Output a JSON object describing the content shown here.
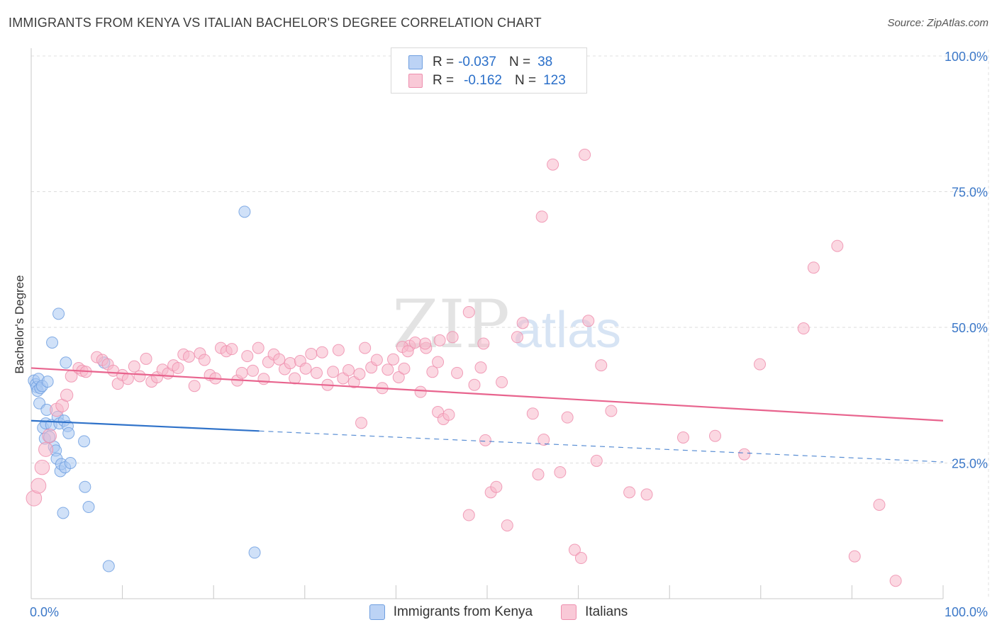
{
  "title": "IMMIGRANTS FROM KENYA VS ITALIAN BACHELOR'S DEGREE CORRELATION CHART",
  "source": "Source: ZipAtlas.com",
  "watermark": {
    "zip": "ZIP",
    "atlas": "atlas"
  },
  "legend": {
    "rows": [
      {
        "r_label": "R =",
        "r_value": "-0.037",
        "n_label": "N =",
        "n_value": "38"
      },
      {
        "r_label": "R =",
        "r_value": "-0.162",
        "n_label": "N =",
        "n_value": "123"
      }
    ]
  },
  "chart_data": {
    "type": "scatter",
    "title": "IMMIGRANTS FROM KENYA VS ITALIAN BACHELOR'S DEGREE CORRELATION CHART",
    "xlabel": "",
    "ylabel": "Bachelor's Degree",
    "xlim": [
      0,
      100
    ],
    "ylim": [
      0,
      100
    ],
    "x_tick_labels": [
      "0.0%",
      "100.0%"
    ],
    "y_ticks": [
      25,
      50,
      75,
      100
    ],
    "y_tick_labels": [
      "25.0%",
      "50.0%",
      "75.0%",
      "100.0%"
    ],
    "grid": true,
    "legend_position": "bottom",
    "series": [
      {
        "name": "Immigrants from Kenya",
        "color": "#a9c8f2",
        "edge": "#6f9fe0",
        "line_color": "#2f72c9",
        "trend": {
          "x0": 0,
          "y0": 32.8,
          "x_solid_end": 25,
          "x1": 100,
          "y1": 25.2
        },
        "points": [
          {
            "x": 0.3,
            "y": 40.2
          },
          {
            "x": 0.5,
            "y": 39.5
          },
          {
            "x": 0.6,
            "y": 39.0
          },
          {
            "x": 0.7,
            "y": 38.3
          },
          {
            "x": 0.8,
            "y": 40.5
          },
          {
            "x": 0.9,
            "y": 36.0
          },
          {
            "x": 1.0,
            "y": 38.8
          },
          {
            "x": 1.2,
            "y": 39.2
          },
          {
            "x": 1.3,
            "y": 31.5
          },
          {
            "x": 1.5,
            "y": 29.5
          },
          {
            "x": 1.6,
            "y": 32.3
          },
          {
            "x": 1.7,
            "y": 34.8
          },
          {
            "x": 1.8,
            "y": 40.0
          },
          {
            "x": 2.0,
            "y": 29.8
          },
          {
            "x": 2.2,
            "y": 32.0
          },
          {
            "x": 2.3,
            "y": 47.2
          },
          {
            "x": 2.5,
            "y": 28.0
          },
          {
            "x": 2.7,
            "y": 27.3
          },
          {
            "x": 2.8,
            "y": 25.8
          },
          {
            "x": 2.9,
            "y": 33.5
          },
          {
            "x": 3.0,
            "y": 52.5
          },
          {
            "x": 3.1,
            "y": 32.3
          },
          {
            "x": 3.2,
            "y": 23.5
          },
          {
            "x": 3.3,
            "y": 24.8
          },
          {
            "x": 3.5,
            "y": 15.8
          },
          {
            "x": 3.6,
            "y": 32.8
          },
          {
            "x": 3.7,
            "y": 24.2
          },
          {
            "x": 3.8,
            "y": 43.5
          },
          {
            "x": 4.0,
            "y": 31.8
          },
          {
            "x": 4.1,
            "y": 30.5
          },
          {
            "x": 4.3,
            "y": 25.0
          },
          {
            "x": 5.8,
            "y": 29.0
          },
          {
            "x": 5.9,
            "y": 20.6
          },
          {
            "x": 6.3,
            "y": 16.9
          },
          {
            "x": 8.5,
            "y": 6.0
          },
          {
            "x": 8.0,
            "y": 43.5
          },
          {
            "x": 23.4,
            "y": 71.3
          },
          {
            "x": 24.5,
            "y": 8.5
          }
        ]
      },
      {
        "name": "Italians",
        "color": "#f7b8cb",
        "edge": "#ee8fae",
        "line_color": "#e8648e",
        "trend": {
          "x0": 0,
          "y0": 42.5,
          "x_solid_end": 100,
          "x1": 100,
          "y1": 32.8
        },
        "points": [
          {
            "x": 0.3,
            "y": 18.5
          },
          {
            "x": 0.8,
            "y": 20.8
          },
          {
            "x": 1.2,
            "y": 24.2
          },
          {
            "x": 1.6,
            "y": 27.5
          },
          {
            "x": 2.0,
            "y": 30.0
          },
          {
            "x": 2.8,
            "y": 34.8
          },
          {
            "x": 3.4,
            "y": 35.6
          },
          {
            "x": 3.9,
            "y": 37.5
          },
          {
            "x": 4.4,
            "y": 41.0
          },
          {
            "x": 5.2,
            "y": 42.5
          },
          {
            "x": 5.6,
            "y": 42.0
          },
          {
            "x": 6.0,
            "y": 41.8
          },
          {
            "x": 7.2,
            "y": 44.5
          },
          {
            "x": 7.8,
            "y": 44.0
          },
          {
            "x": 8.4,
            "y": 43.2
          },
          {
            "x": 9.0,
            "y": 42.0
          },
          {
            "x": 9.5,
            "y": 39.6
          },
          {
            "x": 10.0,
            "y": 41.2
          },
          {
            "x": 10.6,
            "y": 40.5
          },
          {
            "x": 11.3,
            "y": 42.8
          },
          {
            "x": 11.9,
            "y": 41.0
          },
          {
            "x": 12.6,
            "y": 44.2
          },
          {
            "x": 13.2,
            "y": 40.0
          },
          {
            "x": 13.8,
            "y": 40.8
          },
          {
            "x": 14.4,
            "y": 42.2
          },
          {
            "x": 15.0,
            "y": 41.5
          },
          {
            "x": 15.6,
            "y": 43.0
          },
          {
            "x": 16.1,
            "y": 42.5
          },
          {
            "x": 16.7,
            "y": 45.0
          },
          {
            "x": 17.3,
            "y": 44.6
          },
          {
            "x": 17.9,
            "y": 39.2
          },
          {
            "x": 18.5,
            "y": 45.2
          },
          {
            "x": 19.0,
            "y": 44.0
          },
          {
            "x": 19.6,
            "y": 41.2
          },
          {
            "x": 20.2,
            "y": 40.6
          },
          {
            "x": 20.8,
            "y": 46.2
          },
          {
            "x": 21.4,
            "y": 45.6
          },
          {
            "x": 22.0,
            "y": 46.0
          },
          {
            "x": 22.6,
            "y": 40.2
          },
          {
            "x": 23.1,
            "y": 41.6
          },
          {
            "x": 23.7,
            "y": 44.7
          },
          {
            "x": 24.3,
            "y": 42.0
          },
          {
            "x": 24.9,
            "y": 46.2
          },
          {
            "x": 25.5,
            "y": 40.5
          },
          {
            "x": 26.0,
            "y": 43.6
          },
          {
            "x": 26.6,
            "y": 45.0
          },
          {
            "x": 27.2,
            "y": 44.1
          },
          {
            "x": 27.8,
            "y": 42.3
          },
          {
            "x": 28.4,
            "y": 43.4
          },
          {
            "x": 28.9,
            "y": 40.6
          },
          {
            "x": 29.5,
            "y": 43.8
          },
          {
            "x": 30.1,
            "y": 42.4
          },
          {
            "x": 30.7,
            "y": 45.1
          },
          {
            "x": 31.3,
            "y": 41.6
          },
          {
            "x": 31.9,
            "y": 45.4
          },
          {
            "x": 32.5,
            "y": 39.4
          },
          {
            "x": 33.1,
            "y": 41.8
          },
          {
            "x": 33.7,
            "y": 45.8
          },
          {
            "x": 34.2,
            "y": 40.6
          },
          {
            "x": 34.8,
            "y": 42.1
          },
          {
            "x": 35.4,
            "y": 39.9
          },
          {
            "x": 36.0,
            "y": 41.4
          },
          {
            "x": 36.6,
            "y": 46.2
          },
          {
            "x": 37.3,
            "y": 42.6
          },
          {
            "x": 37.9,
            "y": 44.0
          },
          {
            "x": 38.5,
            "y": 38.8
          },
          {
            "x": 39.1,
            "y": 42.2
          },
          {
            "x": 39.7,
            "y": 44.1
          },
          {
            "x": 40.3,
            "y": 40.8
          },
          {
            "x": 40.9,
            "y": 42.4
          },
          {
            "x": 41.5,
            "y": 46.6
          },
          {
            "x": 42.1,
            "y": 47.2
          },
          {
            "x": 42.7,
            "y": 38.1
          },
          {
            "x": 43.3,
            "y": 46.2
          },
          {
            "x": 44.0,
            "y": 41.8
          },
          {
            "x": 44.6,
            "y": 43.6
          },
          {
            "x": 40.7,
            "y": 46.4
          },
          {
            "x": 41.3,
            "y": 45.6
          },
          {
            "x": 46.2,
            "y": 48.2
          },
          {
            "x": 46.7,
            "y": 41.6
          },
          {
            "x": 43.2,
            "y": 47.0
          },
          {
            "x": 48.0,
            "y": 52.8
          },
          {
            "x": 48.6,
            "y": 39.4
          },
          {
            "x": 44.6,
            "y": 34.4
          },
          {
            "x": 45.2,
            "y": 33.1
          },
          {
            "x": 45.8,
            "y": 33.9
          },
          {
            "x": 49.3,
            "y": 42.6
          },
          {
            "x": 49.8,
            "y": 29.2
          },
          {
            "x": 50.4,
            "y": 19.6
          },
          {
            "x": 51.0,
            "y": 20.6
          },
          {
            "x": 51.6,
            "y": 39.9
          },
          {
            "x": 48.0,
            "y": 15.4
          },
          {
            "x": 52.2,
            "y": 13.5
          },
          {
            "x": 53.3,
            "y": 48.2
          },
          {
            "x": 53.9,
            "y": 50.8
          },
          {
            "x": 44.8,
            "y": 47.6
          },
          {
            "x": 36.2,
            "y": 32.4
          },
          {
            "x": 49.6,
            "y": 47.0
          },
          {
            "x": 55.0,
            "y": 34.1
          },
          {
            "x": 55.6,
            "y": 22.9
          },
          {
            "x": 56.2,
            "y": 29.3
          },
          {
            "x": 57.2,
            "y": 80.0
          },
          {
            "x": 56.0,
            "y": 70.4
          },
          {
            "x": 58.0,
            "y": 23.3
          },
          {
            "x": 58.8,
            "y": 33.4
          },
          {
            "x": 59.6,
            "y": 9.0
          },
          {
            "x": 60.3,
            "y": 7.5
          },
          {
            "x": 60.7,
            "y": 81.8
          },
          {
            "x": 61.1,
            "y": 51.2
          },
          {
            "x": 62.0,
            "y": 25.4
          },
          {
            "x": 62.5,
            "y": 43.0
          },
          {
            "x": 63.6,
            "y": 34.6
          },
          {
            "x": 65.6,
            "y": 19.6
          },
          {
            "x": 67.5,
            "y": 19.2
          },
          {
            "x": 71.5,
            "y": 29.7
          },
          {
            "x": 75.0,
            "y": 30.0
          },
          {
            "x": 78.2,
            "y": 26.6
          },
          {
            "x": 79.9,
            "y": 43.2
          },
          {
            "x": 84.7,
            "y": 49.8
          },
          {
            "x": 85.8,
            "y": 61.0
          },
          {
            "x": 88.4,
            "y": 65.0
          },
          {
            "x": 90.3,
            "y": 7.8
          },
          {
            "x": 93.0,
            "y": 17.3
          },
          {
            "x": 94.8,
            "y": 3.3
          }
        ]
      }
    ]
  }
}
